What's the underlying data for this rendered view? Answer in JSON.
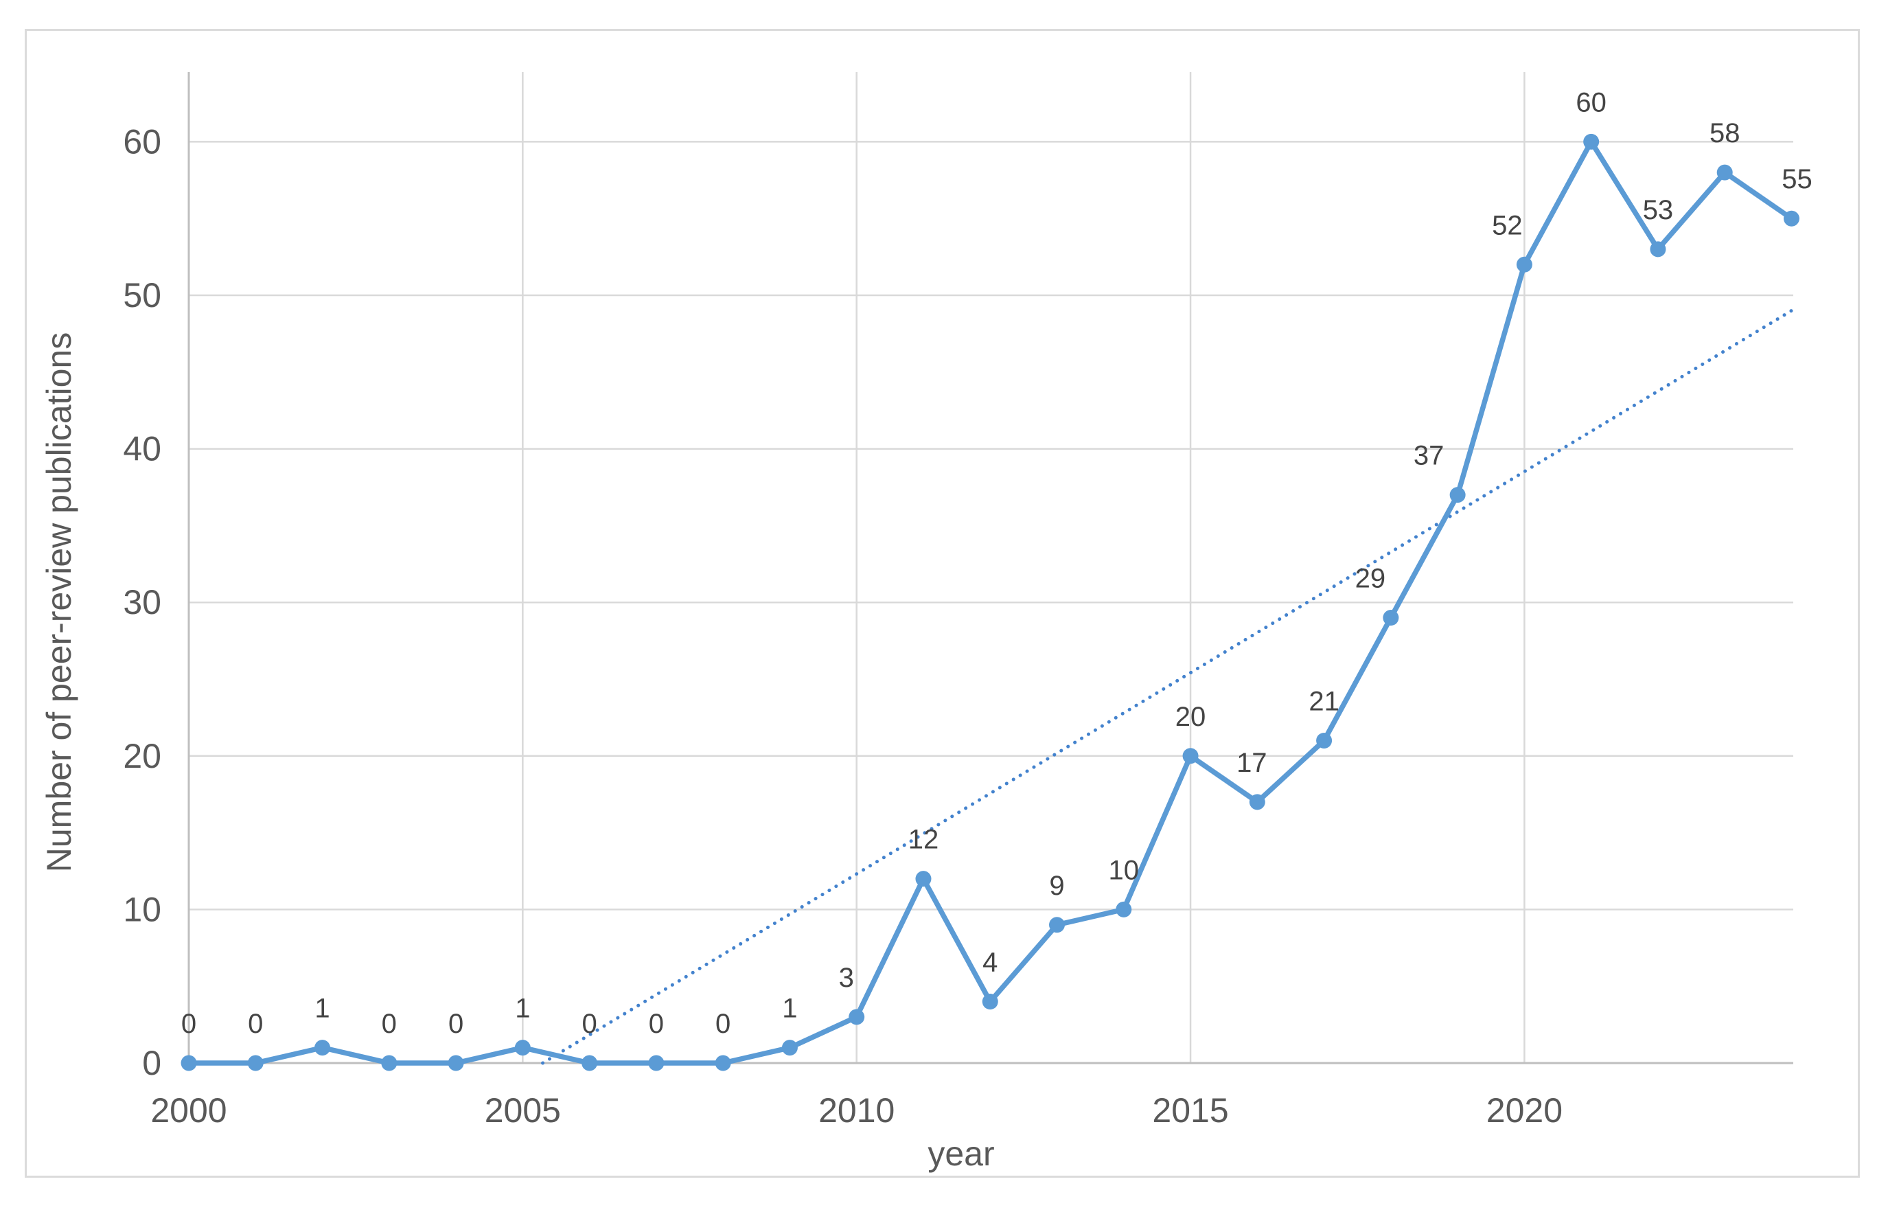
{
  "figure": {
    "kind": "line chart with dotted linear trendline",
    "background": "#FFFFFF"
  },
  "chart_data": {
    "type": "line",
    "title": "",
    "xlabel": "year",
    "ylabel": "Number of peer-review publications",
    "x": [
      2000,
      2001,
      2002,
      2003,
      2004,
      2005,
      2006,
      2007,
      2008,
      2009,
      2010,
      2011,
      2012,
      2013,
      2014,
      2015,
      2016,
      2017,
      2018,
      2019,
      2020,
      2021,
      2022,
      2023,
      2024
    ],
    "series": [
      {
        "name": "Number of peer-review publications",
        "values": [
          0,
          0,
          1,
          0,
          0,
          1,
          0,
          0,
          0,
          1,
          3,
          12,
          4,
          9,
          10,
          20,
          17,
          21,
          29,
          37,
          52,
          60,
          53,
          58,
          55
        ]
      }
    ],
    "data_labels": [
      "0",
      "0",
      "1",
      "0",
      "0",
      "1",
      "0",
      "0",
      "0",
      "1",
      "3",
      "12",
      "4",
      "9",
      "10",
      "20",
      "17",
      "21",
      "29",
      "37",
      "52",
      "60",
      "53",
      "58",
      "55"
    ],
    "xticks": [
      "2000",
      "2005",
      "2010",
      "2015",
      "2020"
    ],
    "xtick_years": [
      2000,
      2005,
      2010,
      2015,
      2020
    ],
    "yticks": [
      "0",
      "10",
      "20",
      "30",
      "40",
      "50",
      "60"
    ],
    "ytick_values": [
      0,
      10,
      20,
      30,
      40,
      50,
      60
    ],
    "xlim": [
      2000,
      2024
    ],
    "ylim": [
      0,
      65
    ],
    "grid": true,
    "legend": false,
    "marker": "circle",
    "trendline": {
      "type": "linear",
      "style": "dotted",
      "x_start": 2005.3,
      "y_start": 0,
      "x_end": 2024,
      "y_end": 49
    },
    "colors": {
      "series": "#5B9BD5",
      "trendline": "#4382CD",
      "gridline": "#D9D9D9",
      "axis_line": "#BFBFBF",
      "tick_text": "#595959",
      "data_label_text": "#444444",
      "frame_border": "#DBDBDB"
    }
  }
}
